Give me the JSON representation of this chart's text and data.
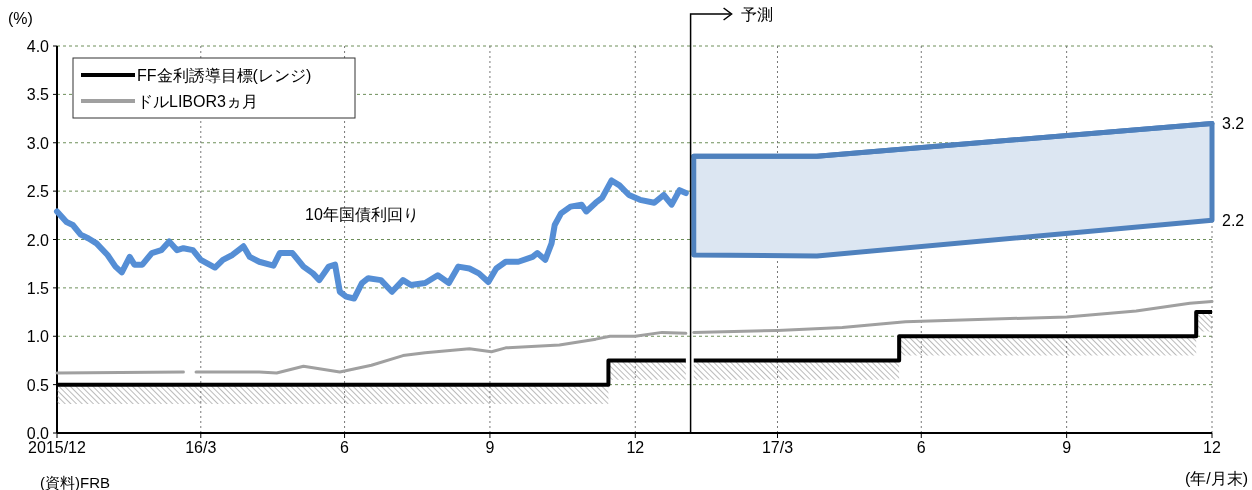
{
  "chart_data": {
    "type": "line",
    "ylabel": "(%)",
    "xlabel": "(年/月末)",
    "xlim": [
      "2015-12-31",
      "2017-12-31"
    ],
    "xticks": [
      {
        "value": "2015-12-31",
        "label": "2015/12"
      },
      {
        "value": "2016-03-31",
        "label": "16/3"
      },
      {
        "value": "2016-06-30",
        "label": "6"
      },
      {
        "value": "2016-09-30",
        "label": "9"
      },
      {
        "value": "2016-12-31",
        "label": "12"
      },
      {
        "value": "2017-03-31",
        "label": "17/3"
      },
      {
        "value": "2017-06-30",
        "label": "6"
      },
      {
        "value": "2017-09-30",
        "label": "9"
      },
      {
        "value": "2017-12-31",
        "label": "12"
      }
    ],
    "ylim": [
      0,
      4
    ],
    "yticks": [
      {
        "value": 0,
        "label": "0.0"
      },
      {
        "value": 0.5,
        "label": "0.5"
      },
      {
        "value": 1,
        "label": "1.0"
      },
      {
        "value": 1.5,
        "label": "1.5"
      },
      {
        "value": 2,
        "label": "2.0"
      },
      {
        "value": 2.5,
        "label": "2.5"
      },
      {
        "value": 3,
        "label": "3.0"
      },
      {
        "value": 3.5,
        "label": "3.5"
      },
      {
        "value": 4,
        "label": "4.0"
      }
    ],
    "grid": true,
    "legend": "top left",
    "series": [
      {
        "color": "#558ed5",
        "x": [
          "2015-12-31",
          "2016-01-06",
          "2016-01-10",
          "2016-01-15",
          "2016-01-20",
          "2016-01-25",
          "2016-02-01",
          "2016-02-06",
          "2016-02-10",
          "2016-02-15",
          "2016-02-18",
          "2016-02-23",
          "2016-02-29",
          "2016-03-06",
          "2016-03-11",
          "2016-03-16",
          "2016-03-20",
          "2016-03-26",
          "2016-03-31",
          "2016-04-09",
          "2016-04-14",
          "2016-04-20",
          "2016-04-27",
          "2016-05-01",
          "2016-05-07",
          "2016-05-16",
          "2016-05-20",
          "2016-05-28",
          "2016-06-04",
          "2016-06-10",
          "2016-06-14",
          "2016-06-20",
          "2016-06-24",
          "2016-06-27",
          "2016-07-01",
          "2016-07-06",
          "2016-07-11",
          "2016-07-15",
          "2016-07-23",
          "2016-07-30",
          "2016-08-06",
          "2016-08-11",
          "2016-08-20",
          "2016-08-28",
          "2016-09-04",
          "2016-09-10",
          "2016-09-17",
          "2016-09-23",
          "2016-09-29",
          "2016-10-04",
          "2016-10-10",
          "2016-10-18",
          "2016-10-27",
          "2016-10-30",
          "2016-11-04",
          "2016-11-08",
          "2016-11-10",
          "2016-11-14",
          "2016-11-20",
          "2016-11-27",
          "2016-11-30",
          "2016-12-06",
          "2016-12-10",
          "2016-12-16",
          "2016-12-21",
          "2016-12-27",
          "2017-01-03",
          "2017-01-12",
          "2017-01-18",
          "2017-01-23",
          "2017-01-28",
          "2017-02-01"
        ],
        "values": [
          2.29,
          2.18,
          2.15,
          2.05,
          2.01,
          1.96,
          1.84,
          1.72,
          1.66,
          1.82,
          1.74,
          1.74,
          1.86,
          1.89,
          1.98,
          1.89,
          1.91,
          1.89,
          1.79,
          1.71,
          1.79,
          1.84,
          1.93,
          1.82,
          1.77,
          1.73,
          1.86,
          1.86,
          1.72,
          1.65,
          1.58,
          1.72,
          1.74,
          1.46,
          1.41,
          1.39,
          1.55,
          1.6,
          1.58,
          1.46,
          1.58,
          1.53,
          1.55,
          1.63,
          1.55,
          1.72,
          1.7,
          1.65,
          1.56,
          1.7,
          1.77,
          1.77,
          1.82,
          1.86,
          1.79,
          1.96,
          2.15,
          2.27,
          2.34,
          2.36,
          2.29,
          2.38,
          2.43,
          2.61,
          2.56,
          2.46,
          2.41,
          2.38,
          2.46,
          2.36,
          2.51,
          2.48
        ]
      },
      {
        "type": "line",
        "color": "#4f81bd",
        "x": [
          "2017-02-06",
          "2017-04-25",
          "2017-12-31"
        ],
        "values": [
          2.86,
          2.86,
          3.2
        ],
        "lower": [
          1.84,
          1.83,
          2.2
        ],
        "upper": [
          2.86,
          2.86,
          3.2
        ]
      },
      {
        "type": "step",
        "name": "FF金利誘導目標(レンジ)",
        "color": "#000000",
        "x": [
          "2015-12-31",
          "2016-12-14",
          "2017-02-01",
          "2017-02-04",
          "2017-02-06",
          "2017-06-16",
          "2017-12-21",
          "2017-12-31"
        ],
        "values": [
          0.5,
          0.75,
          0.75,
          null,
          0.75,
          1.0,
          1.25,
          1.25
        ],
        "lower": [
          0.3,
          0.55,
          0.55,
          null,
          0.55,
          0.8,
          1.05,
          1.05
        ],
        "upper": [
          0.5,
          0.75,
          0.75,
          null,
          0.75,
          1.0,
          1.25,
          1.25
        ]
      },
      {
        "type": "line",
        "name": "ドルLIBOR3ヵ月",
        "color": "#a0a0a0",
        "x": [
          "2015-12-31",
          "2016-03-20",
          "2016-03-24",
          "2016-03-28",
          "2016-05-07",
          "2016-05-18",
          "2016-06-04",
          "2016-06-27",
          "2016-07-17",
          "2016-08-06",
          "2016-08-20",
          "2016-09-17",
          "2016-10-01",
          "2016-10-10",
          "2016-11-13",
          "2016-12-06",
          "2016-12-15",
          "2016-12-31",
          "2017-01-17",
          "2017-02-01",
          "2017-02-04",
          "2017-02-06",
          "2017-03-31",
          "2017-05-11",
          "2017-06-06",
          "2017-06-20",
          "2017-09-30",
          "2017-11-13",
          "2017-12-17",
          "2017-12-31"
        ],
        "values": [
          0.62,
          0.63,
          null,
          0.63,
          0.63,
          0.62,
          0.69,
          0.63,
          0.7,
          0.8,
          0.83,
          0.87,
          0.84,
          0.88,
          0.91,
          0.97,
          1.0,
          1.0,
          1.04,
          1.03,
          null,
          1.04,
          1.06,
          1.09,
          1.13,
          1.15,
          1.2,
          1.26,
          1.34,
          1.36
        ]
      }
    ],
    "ref_lines": [
      {
        "axis": "x",
        "value": "2017-02-04",
        "label": "予測",
        "color": "#000000"
      }
    ],
    "annotations": [
      "10年国債利回り",
      {
        "text": "3.2",
        "x": "2017-12-31",
        "y": 3.2
      },
      {
        "text": "2.2",
        "x": "2017-12-31",
        "y": 2.2
      },
      "(資料)FRB"
    ]
  }
}
